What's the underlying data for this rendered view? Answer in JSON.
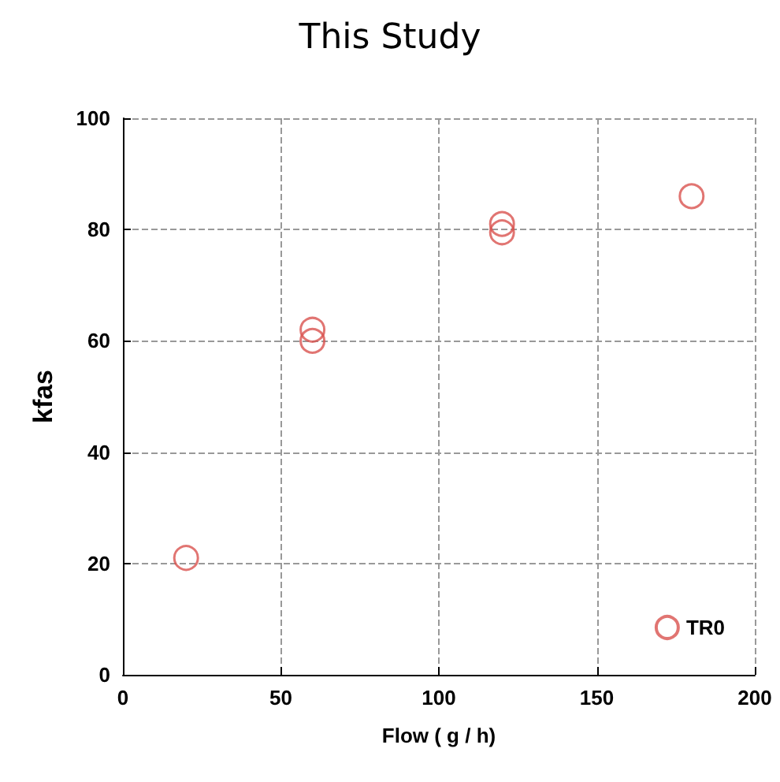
{
  "chart_data": {
    "type": "scatter",
    "title": "This Study",
    "xlabel": "Flow ( g / h)",
    "ylabel": "kfas",
    "x": [
      20,
      60,
      60,
      120,
      120,
      180
    ],
    "series": [
      {
        "name": "TR0",
        "color": "#d9534f",
        "values": [
          21,
          62,
          60,
          81,
          79.5,
          86
        ]
      }
    ],
    "xlim": [
      0,
      200
    ],
    "xticks": [
      0,
      50,
      100,
      150,
      200
    ],
    "ylim": [
      0,
      100
    ],
    "yticks": [
      0,
      20,
      40,
      60,
      80,
      100
    ],
    "grid": true,
    "legend": "bottom right",
    "marker": "circle"
  }
}
